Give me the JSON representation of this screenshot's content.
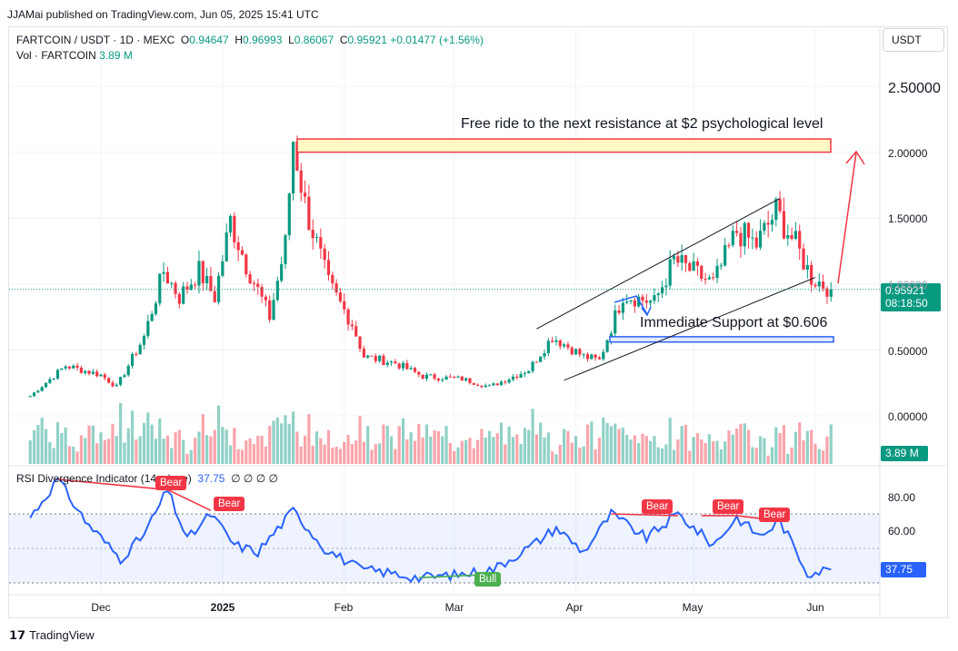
{
  "publisher": "JJAMai published on TradingView.com, Jun 05, 2025 15:41 UTC",
  "header": {
    "symbol": "FARTCOIN / USDT · 1D · MEXC",
    "o_label": "O",
    "o": "0.94647",
    "h_label": "H",
    "h": "0.96993",
    "l_label": "L",
    "l": "0.86067",
    "c_label": "C",
    "c": "0.95921",
    "change": "+0.01477 (+1.56%)",
    "vol_label": "Vol · FARTCOIN",
    "vol_value": "3.89 M"
  },
  "currency_button": "USDT",
  "last_price_tag": {
    "price": "0.95921",
    "countdown": "08:18:50"
  },
  "volume_tag": "3.89 M",
  "rsi": {
    "title": "RSI Divergence Indicator (14, close)",
    "value": "37.75",
    "extra": "∅ ∅ ∅ ∅",
    "tag": "37.75"
  },
  "annotations": {
    "resistance": "Free ride to the next resistance at $2 psychological level",
    "support": "Immediate Support at $0.606"
  },
  "signals": [
    "Bear",
    "Bear",
    "Bear",
    "Bear",
    "Bear",
    "Bull"
  ],
  "logo_text": "TradingView",
  "colors": {
    "up": "#089981",
    "down": "#f23645",
    "rsi": "#2962ff",
    "bull": "#4caf50",
    "channel": "#131722"
  },
  "chart_data": [
    {
      "type": "candlestick",
      "y_ticks": [
        "2.50000",
        "2.00000",
        "1.50000",
        "1.00000",
        "0.50000",
        "0.00000"
      ],
      "ylim": [
        0,
        2.7
      ],
      "x_ticks": [
        "Dec",
        "2025",
        "Feb",
        "Mar",
        "Apr",
        "May",
        "Jun"
      ],
      "anchors": [
        {
          "date": "2024-11-13",
          "close": 0.15
        },
        {
          "date": "2024-11-22",
          "close": 0.38
        },
        {
          "date": "2024-12-01",
          "close": 0.31
        },
        {
          "date": "2024-12-05",
          "close": 0.22
        },
        {
          "date": "2024-12-12",
          "close": 0.6
        },
        {
          "date": "2024-12-17",
          "close": 1.1
        },
        {
          "date": "2024-12-21",
          "close": 0.9
        },
        {
          "date": "2024-12-26",
          "close": 1.1
        },
        {
          "date": "2024-12-30",
          "close": 0.9
        },
        {
          "date": "2025-01-03",
          "close": 1.48
        },
        {
          "date": "2025-01-07",
          "close": 1.15
        },
        {
          "date": "2025-01-13",
          "close": 0.75
        },
        {
          "date": "2025-01-17",
          "close": 1.3
        },
        {
          "date": "2025-01-19",
          "close": 2.1
        },
        {
          "date": "2025-01-22",
          "close": 1.6
        },
        {
          "date": "2025-01-28",
          "close": 1.0
        },
        {
          "date": "2025-02-03",
          "close": 0.7
        },
        {
          "date": "2025-02-06",
          "close": 0.45
        },
        {
          "date": "2025-02-14",
          "close": 0.4
        },
        {
          "date": "2025-02-21",
          "close": 0.3
        },
        {
          "date": "2025-03-03",
          "close": 0.28
        },
        {
          "date": "2025-03-10",
          "close": 0.22
        },
        {
          "date": "2025-03-20",
          "close": 0.35
        },
        {
          "date": "2025-03-26",
          "close": 0.6
        },
        {
          "date": "2025-04-03",
          "close": 0.45
        },
        {
          "date": "2025-04-07",
          "close": 0.42
        },
        {
          "date": "2025-04-13",
          "close": 0.92
        },
        {
          "date": "2025-04-21",
          "close": 0.86
        },
        {
          "date": "2025-04-26",
          "close": 1.18
        },
        {
          "date": "2025-05-06",
          "close": 1.0
        },
        {
          "date": "2025-05-12",
          "close": 1.4
        },
        {
          "date": "2025-05-17",
          "close": 1.3
        },
        {
          "date": "2025-05-22",
          "close": 1.55
        },
        {
          "date": "2025-05-27",
          "close": 1.3
        },
        {
          "date": "2025-05-31",
          "close": 1.05
        },
        {
          "date": "2025-06-05",
          "close": 0.96
        }
      ],
      "resistance_zone": [
        2.0,
        2.1
      ],
      "support_zone": [
        0.56,
        0.6
      ],
      "channel": {
        "upper": [
          {
            "date": "2025-03-22",
            "price": 0.66
          },
          {
            "date": "2025-05-23",
            "price": 1.65
          }
        ],
        "lower": [
          {
            "date": "2025-03-29",
            "price": 0.27
          },
          {
            "date": "2025-06-01",
            "price": 1.05
          }
        ]
      }
    },
    {
      "type": "line",
      "name": "RSI Divergence Indicator (14, close)",
      "y_ticks": [
        "80.00",
        "60.00"
      ],
      "ylim": [
        28,
        92
      ],
      "band": [
        30,
        70
      ],
      "anchors": [
        {
          "date": "2024-11-13",
          "rsi": 68
        },
        {
          "date": "2024-11-20",
          "rsi": 90
        },
        {
          "date": "2024-11-27",
          "rsi": 66
        },
        {
          "date": "2024-12-06",
          "rsi": 44
        },
        {
          "date": "2024-12-12",
          "rsi": 58
        },
        {
          "date": "2024-12-18",
          "rsi": 84
        },
        {
          "date": "2024-12-23",
          "rsi": 55
        },
        {
          "date": "2024-12-29",
          "rsi": 70
        },
        {
          "date": "2025-01-04",
          "rsi": 52
        },
        {
          "date": "2025-01-10",
          "rsi": 48
        },
        {
          "date": "2025-01-19",
          "rsi": 72
        },
        {
          "date": "2025-01-27",
          "rsi": 50
        },
        {
          "date": "2025-02-05",
          "rsi": 38
        },
        {
          "date": "2025-02-12",
          "rsi": 36
        },
        {
          "date": "2025-02-20",
          "rsi": 33
        },
        {
          "date": "2025-03-03",
          "rsi": 35
        },
        {
          "date": "2025-03-11",
          "rsi": 38
        },
        {
          "date": "2025-03-21",
          "rsi": 52
        },
        {
          "date": "2025-03-27",
          "rsi": 62
        },
        {
          "date": "2025-04-03",
          "rsi": 48
        },
        {
          "date": "2025-04-10",
          "rsi": 70
        },
        {
          "date": "2025-04-19",
          "rsi": 56
        },
        {
          "date": "2025-04-27",
          "rsi": 70
        },
        {
          "date": "2025-05-06",
          "rsi": 52
        },
        {
          "date": "2025-05-12",
          "rsi": 68
        },
        {
          "date": "2025-05-18",
          "rsi": 57
        },
        {
          "date": "2025-05-23",
          "rsi": 66
        },
        {
          "date": "2025-05-30",
          "rsi": 36
        },
        {
          "date": "2025-06-05",
          "rsi": 37.75
        }
      ]
    }
  ]
}
